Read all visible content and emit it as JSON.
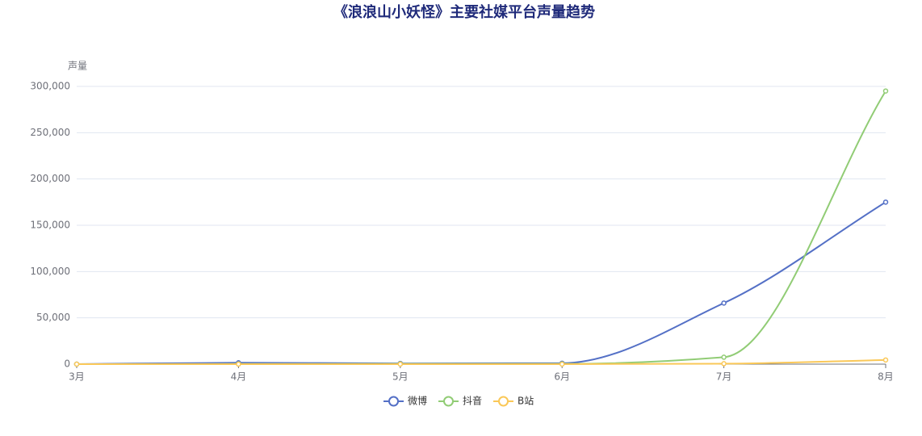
{
  "chart_data": {
    "type": "line",
    "title": "《浪浪山小妖怪》主要社媒平台声量趋势",
    "y_label": "声量",
    "categories": [
      "3月",
      "4月",
      "5月",
      "6月",
      "7月",
      "8月"
    ],
    "series": [
      {
        "name": "微博",
        "color": "#5470c6",
        "values": [
          0,
          1500,
          800,
          1000,
          66000,
          175000
        ]
      },
      {
        "name": "抖音",
        "color": "#91cc75",
        "values": [
          0,
          200,
          300,
          300,
          7500,
          295000
        ]
      },
      {
        "name": "B站",
        "color": "#fac858",
        "values": [
          0,
          0,
          0,
          0,
          500,
          4500
        ]
      }
    ],
    "ylim": [
      0,
      300000
    ],
    "yticks": [
      0,
      {
        "value": 50000,
        "label": "50,000"
      },
      {
        "value": 100000,
        "label": "100,000"
      },
      {
        "value": 150000,
        "label": "150,000"
      },
      {
        "value": 200000,
        "label": "200,000"
      },
      {
        "value": 250000,
        "label": "250,000"
      },
      {
        "value": 300000,
        "label": "300,000"
      }
    ],
    "grid": true,
    "legend": "bottom"
  }
}
